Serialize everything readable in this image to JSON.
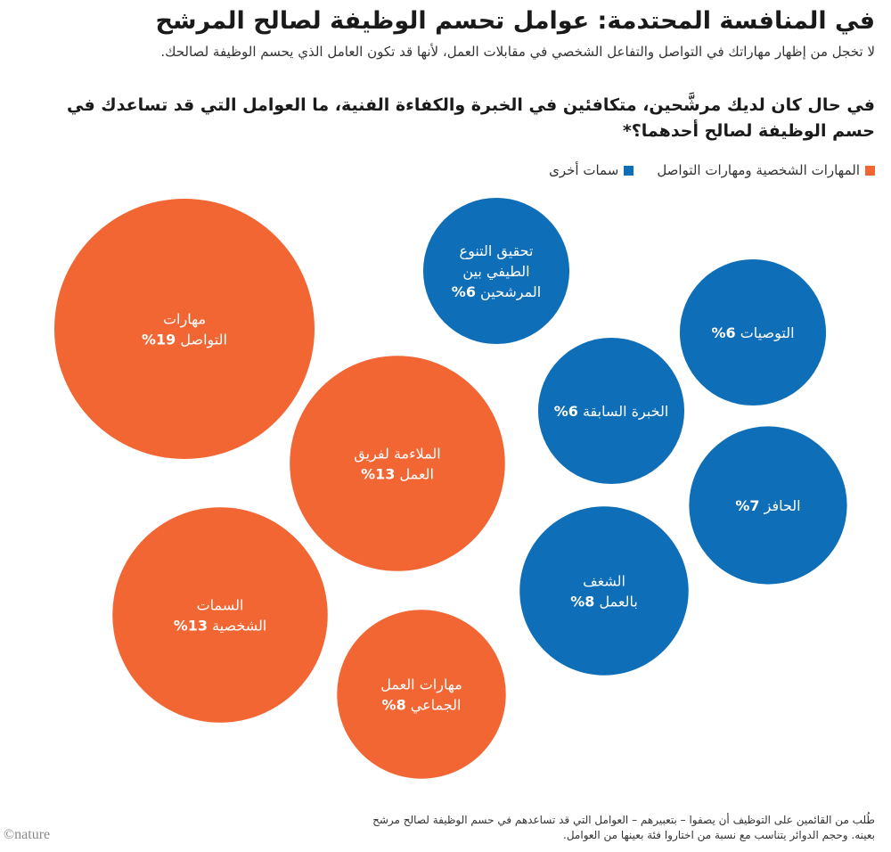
{
  "header": {
    "title": "في المنافسة المحتدمة: عوامل تحسم الوظيفة لصالح المرشح",
    "subtitle": "لا تخجل من إظهار مهاراتك في التواصل والتفاعل الشخصي في مقابلات العمل، لأنها قد تكون العامل الذي يحسم الوظيفة لصالحك.",
    "question": "في حال كان لديك مرشَّحين، متكافئين في الخبرة والكفاءة الفنية، ما العوامل التي قد تساعدك في حسم الوظيفة لصالح أحدهما؟*"
  },
  "legend": {
    "items": [
      {
        "label": "المهارات الشخصية ومهارات التواصل",
        "color": "#f26634"
      },
      {
        "label": "سمات أخرى",
        "color": "#0e6eb8"
      }
    ]
  },
  "chart_data": {
    "type": "bubble",
    "unit": "%",
    "groups": [
      {
        "name": "المهارات الشخصية ومهارات التواصل",
        "color": "#f26634"
      },
      {
        "name": "سمات أخرى",
        "color": "#0e6eb8"
      }
    ],
    "bubbles": [
      {
        "lines": [
          "مهارات",
          "التواصل"
        ],
        "value": 19,
        "group": 0
      },
      {
        "lines": [
          "الملاءمة لفريق",
          "العمل"
        ],
        "value": 13,
        "group": 0
      },
      {
        "lines": [
          "السمات",
          "الشخصية"
        ],
        "value": 13,
        "group": 0
      },
      {
        "lines": [
          "مهارات العمل",
          "الجماعي"
        ],
        "value": 8,
        "group": 0
      },
      {
        "lines": [
          "تحقيق التنوع",
          "الطيفي بين",
          "المرشحين"
        ],
        "value": 6,
        "group": 1
      },
      {
        "lines": [
          "التوصيات"
        ],
        "value": 6,
        "group": 1
      },
      {
        "lines": [
          "الخبرة السابقة"
        ],
        "value": 6,
        "group": 1
      },
      {
        "lines": [
          "الحافز"
        ],
        "value": 7,
        "group": 1
      },
      {
        "lines": [
          "الشغف",
          "بالعمل"
        ],
        "value": 8,
        "group": 1
      }
    ]
  },
  "footnote": "طُلب من القائمين على التوظيف أن يصفوا – بتعبيرهم – العوامل التي قد تساعدهم في حسم الوظيفة لصالح مرشح بعينه. وحجم الدوائر يتناسب مع نسبة من اختاروا فئة بعينها من العوامل.",
  "logo": "©nature"
}
